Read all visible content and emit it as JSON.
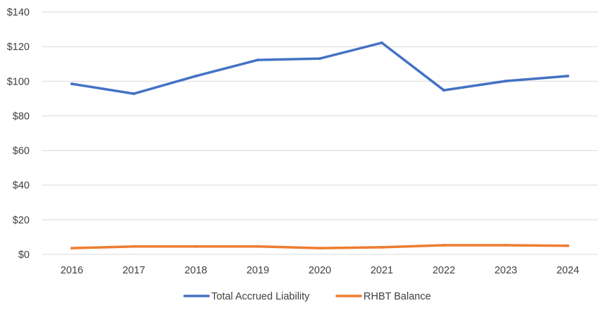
{
  "chart_data": {
    "type": "line",
    "categories": [
      "2016",
      "2017",
      "2018",
      "2019",
      "2020",
      "2021",
      "2022",
      "2023",
      "2024"
    ],
    "series": [
      {
        "name": "Total Accrued Liability",
        "color": "#4472C4",
        "values": [
          98.5,
          92.8,
          103.0,
          112.3,
          113.1,
          122.2,
          94.8,
          100.1,
          103.0
        ]
      },
      {
        "name": "RHBT Balance",
        "color": "#ED7D31",
        "values": [
          3.6,
          4.6,
          4.6,
          4.6,
          3.6,
          4.1,
          5.3,
          5.3,
          5.0
        ]
      }
    ],
    "ylim": [
      0,
      140
    ],
    "yticks": [
      0,
      20,
      40,
      60,
      80,
      100,
      120,
      140
    ],
    "ytick_labels": [
      "$0",
      "$20",
      "$40",
      "$60",
      "$80",
      "$100",
      "$120",
      "$140"
    ],
    "grid": true,
    "legend_position": "bottom",
    "title": "",
    "xlabel": "",
    "ylabel": ""
  }
}
